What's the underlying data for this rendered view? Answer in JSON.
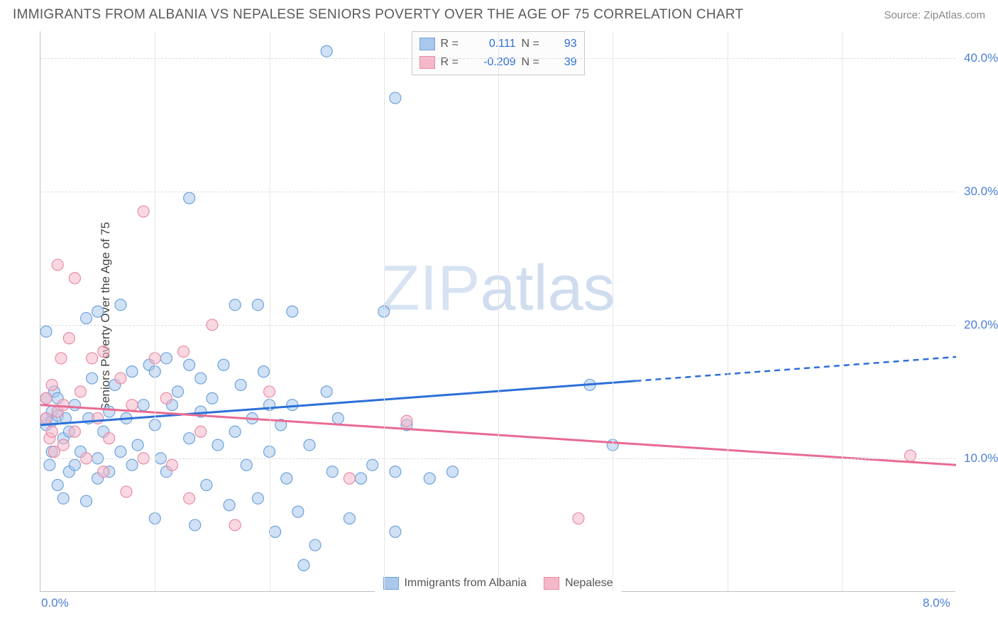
{
  "title": "IMMIGRANTS FROM ALBANIA VS NEPALESE SENIORS POVERTY OVER THE AGE OF 75 CORRELATION CHART",
  "source": "Source: ZipAtlas.com",
  "y_axis_label": "Seniors Poverty Over the Age of 75",
  "watermark": "ZIPatlas",
  "chart": {
    "type": "scatter-with-regression",
    "xlim": [
      0.0,
      8.0
    ],
    "ylim": [
      0.0,
      42.0
    ],
    "x_ticks": [
      0.0,
      8.0
    ],
    "x_tick_labels": [
      "0.0%",
      "8.0%"
    ],
    "y_ticks": [
      10.0,
      20.0,
      30.0,
      40.0
    ],
    "y_tick_labels": [
      "10.0%",
      "20.0%",
      "30.0%",
      "40.0%"
    ],
    "grid_color_h": "#dcdcdc",
    "grid_color_v": "#e5e5e5",
    "background_color": "#ffffff",
    "axis_color": "#c0c0c0",
    "tick_label_color": "#4a7fd6",
    "axis_label_color": "#444444",
    "axis_label_fontsize": 17
  },
  "series": [
    {
      "name": "Immigrants from Albania",
      "color_fill": "#a9c8ec",
      "color_stroke": "#6fa3dc",
      "line_color": "#2d6fd8",
      "fill_opacity": 0.55,
      "marker_r": 8,
      "r_value": "0.111",
      "n_value": "93",
      "reg_start": [
        0.0,
        12.5
      ],
      "reg_solid_end": [
        5.2,
        15.8
      ],
      "reg_dash_end": [
        8.0,
        17.6
      ],
      "points": [
        [
          0.05,
          14.5
        ],
        [
          0.05,
          19.5
        ],
        [
          0.05,
          12.5
        ],
        [
          0.05,
          13.0
        ],
        [
          0.08,
          9.5
        ],
        [
          0.1,
          12.8
        ],
        [
          0.1,
          10.5
        ],
        [
          0.1,
          13.5
        ],
        [
          0.12,
          15.0
        ],
        [
          0.15,
          8.0
        ],
        [
          0.15,
          13.2
        ],
        [
          0.15,
          14.5
        ],
        [
          0.2,
          7.0
        ],
        [
          0.2,
          11.5
        ],
        [
          0.22,
          13.0
        ],
        [
          0.25,
          9.0
        ],
        [
          0.25,
          12.0
        ],
        [
          0.3,
          14.0
        ],
        [
          0.3,
          9.5
        ],
        [
          0.35,
          10.5
        ],
        [
          0.4,
          20.5
        ],
        [
          0.4,
          6.8
        ],
        [
          0.42,
          13.0
        ],
        [
          0.45,
          16.0
        ],
        [
          0.5,
          10.0
        ],
        [
          0.5,
          21.0
        ],
        [
          0.5,
          8.5
        ],
        [
          0.55,
          12.0
        ],
        [
          0.6,
          13.5
        ],
        [
          0.6,
          9.0
        ],
        [
          0.65,
          15.5
        ],
        [
          0.7,
          21.5
        ],
        [
          0.7,
          10.5
        ],
        [
          0.75,
          13.0
        ],
        [
          0.8,
          16.5
        ],
        [
          0.8,
          9.5
        ],
        [
          0.85,
          11.0
        ],
        [
          0.9,
          14.0
        ],
        [
          0.95,
          17.0
        ],
        [
          1.0,
          5.5
        ],
        [
          1.0,
          12.5
        ],
        [
          1.0,
          16.5
        ],
        [
          1.05,
          10.0
        ],
        [
          1.1,
          17.5
        ],
        [
          1.1,
          9.0
        ],
        [
          1.15,
          14.0
        ],
        [
          1.2,
          15.0
        ],
        [
          1.3,
          29.5
        ],
        [
          1.3,
          11.5
        ],
        [
          1.3,
          17.0
        ],
        [
          1.35,
          5.0
        ],
        [
          1.4,
          13.5
        ],
        [
          1.4,
          16.0
        ],
        [
          1.45,
          8.0
        ],
        [
          1.5,
          14.5
        ],
        [
          1.55,
          11.0
        ],
        [
          1.6,
          17.0
        ],
        [
          1.65,
          6.5
        ],
        [
          1.7,
          21.5
        ],
        [
          1.7,
          12.0
        ],
        [
          1.75,
          15.5
        ],
        [
          1.8,
          9.5
        ],
        [
          1.85,
          13.0
        ],
        [
          1.9,
          21.5
        ],
        [
          1.9,
          7.0
        ],
        [
          1.95,
          16.5
        ],
        [
          2.0,
          10.5
        ],
        [
          2.0,
          14.0
        ],
        [
          2.05,
          4.5
        ],
        [
          2.1,
          12.5
        ],
        [
          2.15,
          8.5
        ],
        [
          2.2,
          21.0
        ],
        [
          2.2,
          14.0
        ],
        [
          2.25,
          6.0
        ],
        [
          2.3,
          2.0
        ],
        [
          2.35,
          11.0
        ],
        [
          2.4,
          3.5
        ],
        [
          2.5,
          40.5
        ],
        [
          2.5,
          15.0
        ],
        [
          2.55,
          9.0
        ],
        [
          2.6,
          13.0
        ],
        [
          2.7,
          5.5
        ],
        [
          2.8,
          8.5
        ],
        [
          2.9,
          9.5
        ],
        [
          3.0,
          21.0
        ],
        [
          3.1,
          37.0
        ],
        [
          3.1,
          4.5
        ],
        [
          3.1,
          9.0
        ],
        [
          3.2,
          12.5
        ],
        [
          3.4,
          8.5
        ],
        [
          3.6,
          9.0
        ],
        [
          4.8,
          15.5
        ],
        [
          5.0,
          11.0
        ]
      ]
    },
    {
      "name": "Nepalese",
      "color_fill": "#f5b8c8",
      "color_stroke": "#e98ba6",
      "line_color": "#e86b92",
      "fill_opacity": 0.55,
      "marker_r": 8,
      "r_value": "-0.209",
      "n_value": "39",
      "reg_start": [
        0.0,
        14.0
      ],
      "reg_solid_end": [
        8.0,
        9.5
      ],
      "reg_dash_end": null,
      "points": [
        [
          0.05,
          13.0
        ],
        [
          0.05,
          14.5
        ],
        [
          0.08,
          11.5
        ],
        [
          0.1,
          12.0
        ],
        [
          0.1,
          15.5
        ],
        [
          0.12,
          10.5
        ],
        [
          0.15,
          24.5
        ],
        [
          0.15,
          13.5
        ],
        [
          0.18,
          17.5
        ],
        [
          0.2,
          11.0
        ],
        [
          0.2,
          14.0
        ],
        [
          0.25,
          19.0
        ],
        [
          0.3,
          23.5
        ],
        [
          0.3,
          12.0
        ],
        [
          0.35,
          15.0
        ],
        [
          0.4,
          10.0
        ],
        [
          0.45,
          17.5
        ],
        [
          0.5,
          13.0
        ],
        [
          0.55,
          9.0
        ],
        [
          0.55,
          18.0
        ],
        [
          0.6,
          11.5
        ],
        [
          0.7,
          16.0
        ],
        [
          0.75,
          7.5
        ],
        [
          0.8,
          14.0
        ],
        [
          0.9,
          28.5
        ],
        [
          0.9,
          10.0
        ],
        [
          1.0,
          17.5
        ],
        [
          1.1,
          14.5
        ],
        [
          1.15,
          9.5
        ],
        [
          1.25,
          18.0
        ],
        [
          1.3,
          7.0
        ],
        [
          1.4,
          12.0
        ],
        [
          1.5,
          20.0
        ],
        [
          1.7,
          5.0
        ],
        [
          2.0,
          15.0
        ],
        [
          2.7,
          8.5
        ],
        [
          3.2,
          12.8
        ],
        [
          4.7,
          5.5
        ],
        [
          7.6,
          10.2
        ]
      ]
    }
  ],
  "legend_top": {
    "r_label": "R =",
    "n_label": "N ="
  },
  "legend_bottom": {
    "items": [
      "Immigrants from Albania",
      "Nepalese"
    ]
  }
}
